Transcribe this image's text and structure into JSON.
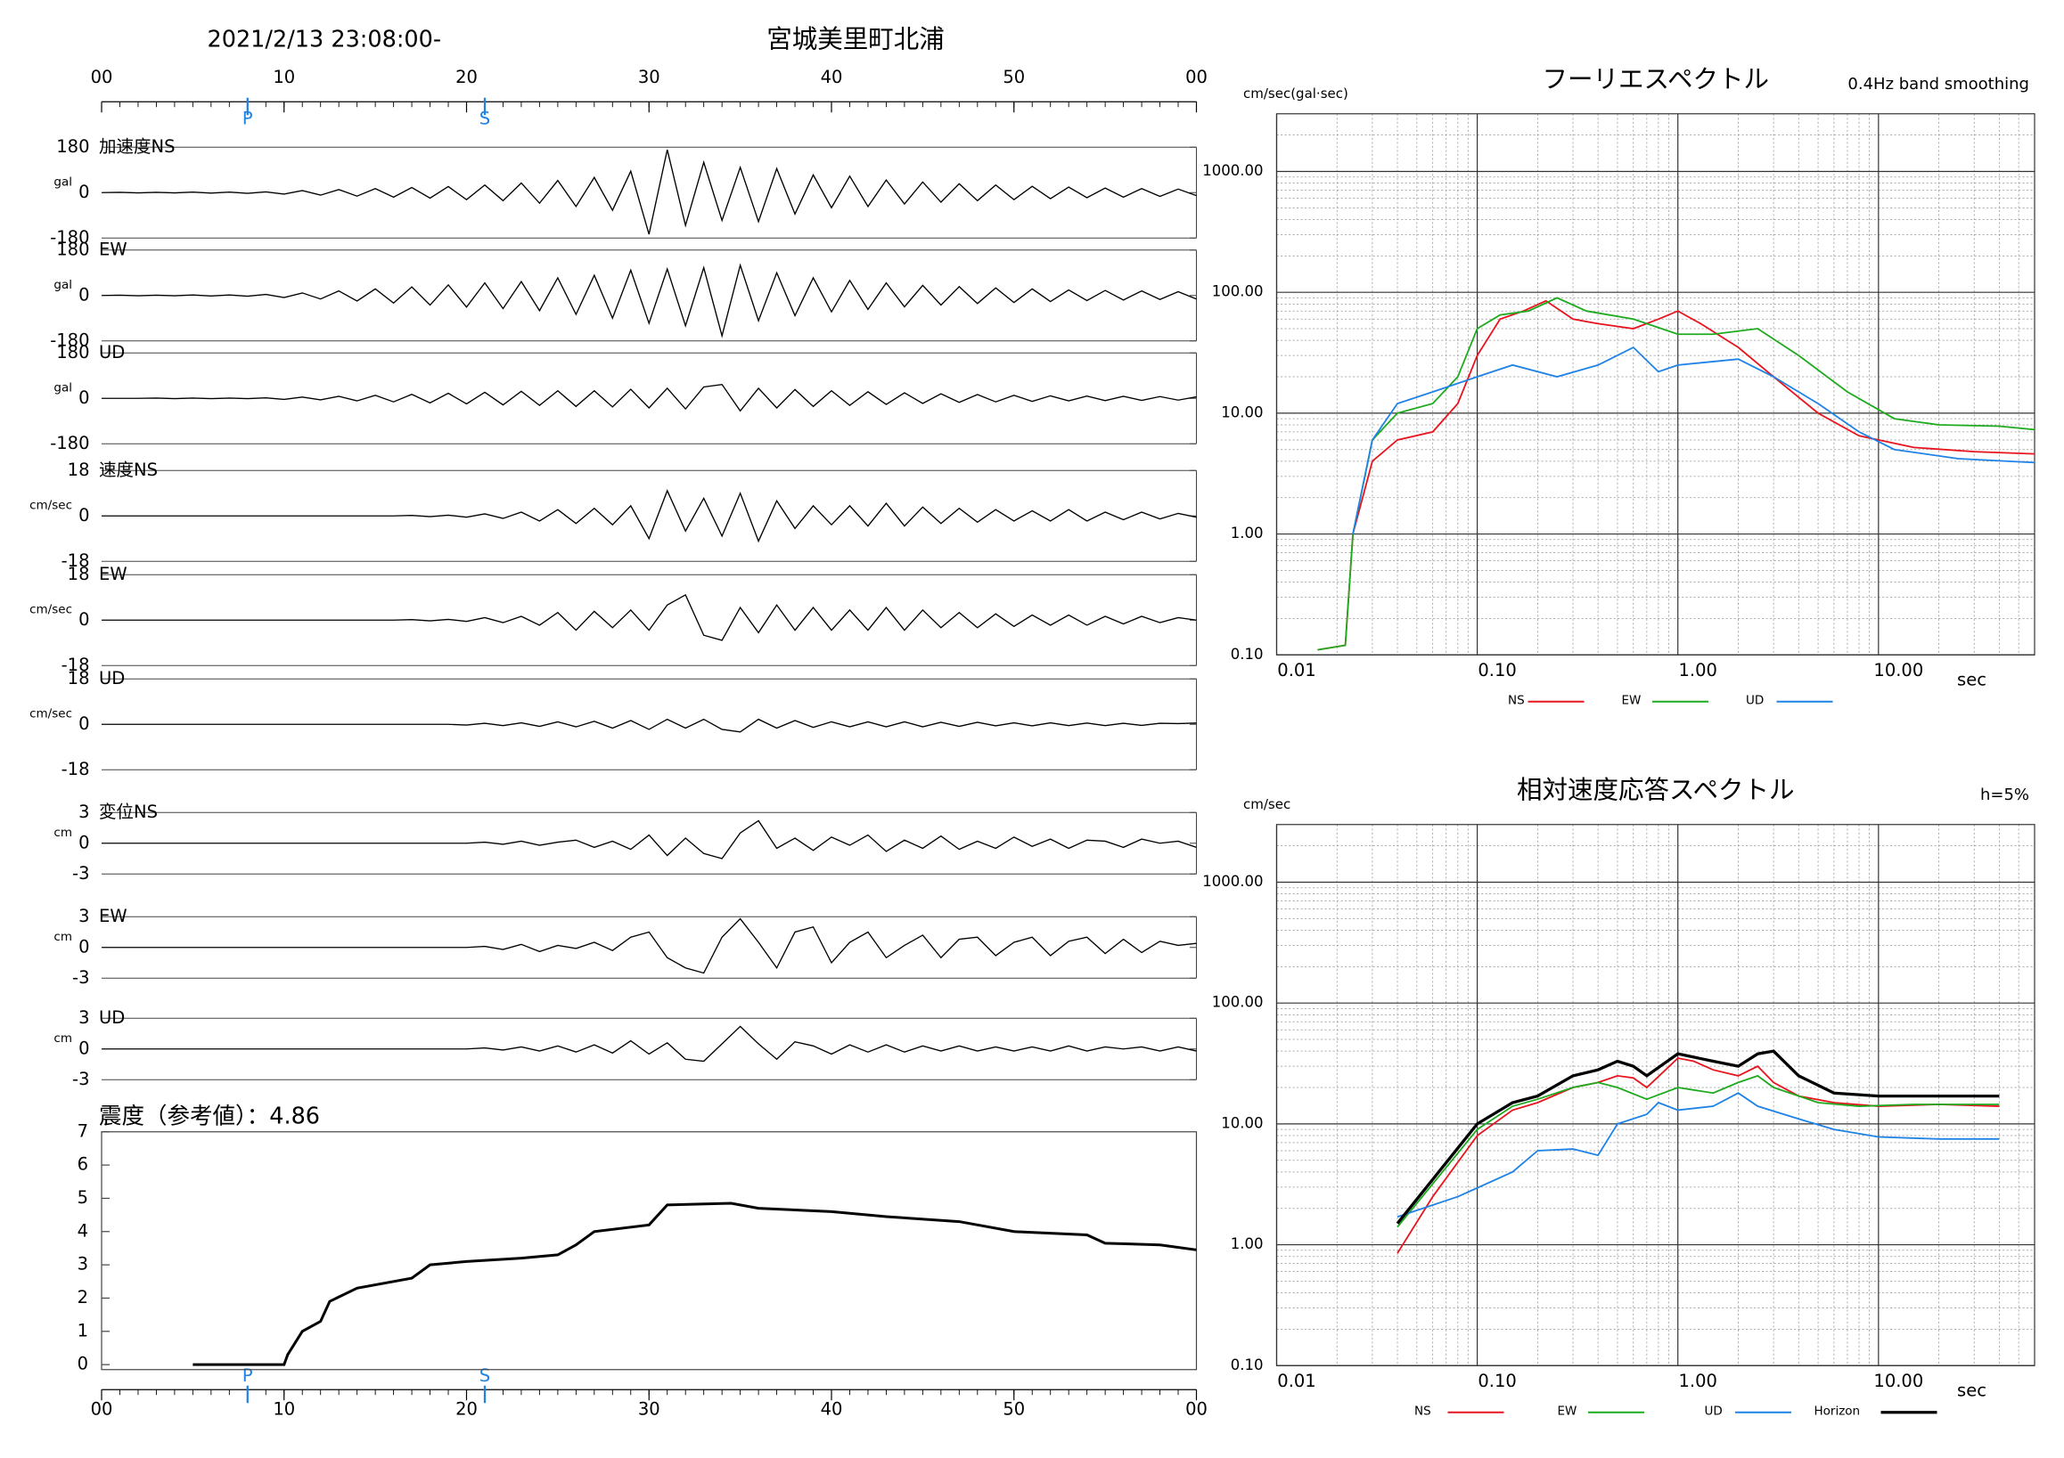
{
  "header": {
    "datetime": "2021/2/13 23:08:00-",
    "station": "宮城美里町北浦"
  },
  "time_axis": {
    "xlim": [
      0,
      60
    ],
    "xticks": [
      {
        "value": 0,
        "label": "00"
      },
      10,
      20,
      30,
      40,
      50,
      {
        "value": 60,
        "label": "00"
      }
    ],
    "phases": [
      {
        "label": "P",
        "value": 8
      },
      {
        "label": "S",
        "value": 21
      }
    ],
    "x": [
      0,
      1,
      2,
      3,
      4,
      5,
      6,
      7,
      8,
      9,
      10,
      11,
      12,
      13,
      14,
      15,
      16,
      17,
      18,
      19,
      20,
      21,
      22,
      23,
      24,
      25,
      26,
      27,
      28,
      29,
      30,
      31,
      32,
      33,
      34,
      35,
      36,
      37,
      38,
      39,
      40,
      41,
      42,
      43,
      44,
      45,
      46,
      47,
      48,
      49,
      50,
      51,
      52,
      53,
      54,
      55,
      56,
      57,
      58,
      59,
      60
    ]
  },
  "chart_data": [
    {
      "type": "line",
      "title": "加速度NS",
      "ylabel": "gal",
      "ylim": [
        -180,
        180
      ],
      "yticks": [
        -180,
        0,
        180
      ],
      "color": "#000000",
      "values": [
        0,
        1,
        -1,
        1,
        -1,
        2,
        -2,
        2,
        -3,
        3,
        -6,
        8,
        -10,
        12,
        -14,
        16,
        -18,
        20,
        -22,
        24,
        -28,
        30,
        -32,
        38,
        -42,
        48,
        -55,
        60,
        -70,
        85,
        -165,
        170,
        -130,
        120,
        -110,
        100,
        -115,
        95,
        -85,
        70,
        -60,
        65,
        -55,
        50,
        -45,
        42,
        -38,
        35,
        -32,
        30,
        -28,
        25,
        -24,
        22,
        -20,
        18,
        -18,
        16,
        -15,
        14,
        -12
      ]
    },
    {
      "type": "line",
      "title": "EW",
      "ylabel": "gal",
      "ylim": [
        -180,
        180
      ],
      "yticks": [
        -180,
        0,
        180
      ],
      "color": "#000000",
      "values": [
        0,
        1,
        -1,
        1,
        -1,
        2,
        -2,
        2,
        -3,
        4,
        -8,
        10,
        -14,
        18,
        -22,
        26,
        -30,
        34,
        -38,
        42,
        -46,
        50,
        -52,
        55,
        -60,
        70,
        -75,
        80,
        -90,
        100,
        -110,
        105,
        -120,
        110,
        -160,
        120,
        -100,
        90,
        -80,
        70,
        -65,
        60,
        -55,
        50,
        -45,
        40,
        -38,
        35,
        -32,
        30,
        -28,
        26,
        -24,
        22,
        -20,
        20,
        -18,
        18,
        -16,
        15,
        -14
      ]
    },
    {
      "type": "line",
      "title": "UD",
      "ylabel": "gal",
      "ylim": [
        -180,
        180
      ],
      "yticks": [
        -180,
        0,
        180
      ],
      "color": "#000000",
      "values": [
        0,
        0,
        0,
        1,
        -1,
        1,
        -1,
        1,
        -1,
        2,
        -4,
        5,
        -6,
        8,
        -10,
        12,
        -14,
        16,
        -18,
        20,
        -22,
        24,
        -26,
        28,
        -28,
        30,
        -32,
        30,
        -34,
        36,
        -38,
        40,
        -42,
        45,
        55,
        -50,
        40,
        -38,
        35,
        -32,
        30,
        -28,
        26,
        -24,
        22,
        -20,
        18,
        -16,
        15,
        -14,
        12,
        -12,
        10,
        -10,
        9,
        -9,
        8,
        -8,
        7,
        -7,
        6
      ]
    },
    {
      "type": "line",
      "title": "速度NS",
      "ylabel": "cm/sec",
      "ylim": [
        -18,
        18
      ],
      "yticks": [
        -18,
        0,
        18
      ],
      "color": "#000000",
      "values": [
        0,
        0,
        0,
        0,
        0,
        0,
        0,
        0,
        0,
        0,
        0,
        0,
        0,
        0,
        0,
        0,
        0,
        0.2,
        -0.3,
        0.3,
        -0.5,
        0.8,
        -1,
        1.5,
        -2,
        2.5,
        -3,
        3,
        -3.5,
        4,
        -9,
        10,
        -6,
        7,
        -8,
        9,
        -10,
        6,
        -5,
        4,
        -3.5,
        4,
        -4,
        5,
        -4,
        3.5,
        -3,
        3,
        -2.5,
        2.5,
        -2,
        2,
        -2,
        2.5,
        -2,
        1.5,
        -1.5,
        1.5,
        -1.2,
        1,
        -0.5
      ]
    },
    {
      "type": "line",
      "title": "EW",
      "ylabel": "cm/sec",
      "ylim": [
        -18,
        18
      ],
      "yticks": [
        -18,
        0,
        18
      ],
      "color": "#000000",
      "values": [
        0,
        0,
        0,
        0,
        0,
        0,
        0,
        0,
        0,
        0,
        0,
        0,
        0,
        0,
        0,
        0,
        0,
        0.2,
        -0.3,
        0.3,
        -0.5,
        1,
        -1,
        1.5,
        -2,
        3,
        -4,
        3.5,
        -3,
        4,
        -4,
        6,
        10,
        -6,
        -8,
        5,
        -5,
        6,
        -4,
        5,
        -4,
        4,
        -4,
        5,
        -4,
        4,
        -3,
        3,
        -3,
        2.5,
        -2.5,
        2,
        -2,
        2,
        -2,
        1.5,
        -1.5,
        1.5,
        -1,
        1,
        0
      ]
    },
    {
      "type": "line",
      "title": "UD",
      "ylabel": "cm/sec",
      "ylim": [
        -18,
        18
      ],
      "yticks": [
        -18,
        0,
        18
      ],
      "color": "#000000",
      "values": [
        0,
        0,
        0,
        0,
        0,
        0,
        0,
        0,
        0,
        0,
        0,
        0,
        0,
        0,
        0,
        0,
        0,
        0,
        0,
        0,
        -0.3,
        0.4,
        -0.5,
        0.6,
        -0.8,
        1,
        -1,
        1.2,
        -1.5,
        1.5,
        -2,
        2,
        -1.5,
        2,
        -2,
        -3,
        2,
        -1.5,
        1.5,
        -1.2,
        1,
        -1,
        1,
        -1,
        1,
        -1,
        0.8,
        -0.8,
        0.8,
        -0.6,
        0.6,
        -0.6,
        0.6,
        -0.5,
        0.5,
        -0.5,
        0.4,
        -0.4,
        0.4,
        0.3,
        0.5
      ]
    },
    {
      "type": "line",
      "title": "変位NS",
      "ylabel": "cm",
      "ylim": [
        -3,
        3
      ],
      "yticks": [
        -3,
        0,
        3
      ],
      "color": "#000000",
      "values": [
        0,
        0,
        0,
        0,
        0,
        0,
        0,
        0,
        0,
        0,
        0,
        0,
        0,
        0,
        0,
        0,
        0,
        0,
        0,
        0,
        0,
        0.1,
        -0.1,
        0.2,
        -0.2,
        0.1,
        0.3,
        -0.4,
        0.2,
        -0.6,
        0.8,
        -1.2,
        0.5,
        -1,
        -1.5,
        1,
        2.2,
        -0.5,
        0.5,
        -0.7,
        0.6,
        -0.2,
        0.8,
        -0.8,
        0.3,
        -0.5,
        0.7,
        -0.6,
        0.2,
        -0.5,
        0.6,
        -0.3,
        0.4,
        -0.5,
        0.3,
        0.2,
        -0.4,
        0.4,
        0,
        0.2,
        -0.4
      ]
    },
    {
      "type": "line",
      "title": "EW",
      "ylabel": "cm",
      "ylim": [
        -3,
        3
      ],
      "yticks": [
        -3,
        0,
        3
      ],
      "color": "#000000",
      "values": [
        0,
        0,
        0,
        0,
        0,
        0,
        0,
        0,
        0,
        0,
        0,
        0,
        0,
        0,
        0,
        0,
        0,
        0,
        0,
        0,
        0,
        0.1,
        -0.2,
        0.3,
        -0.4,
        0.2,
        -0.1,
        0.5,
        -0.3,
        1,
        1.5,
        -1,
        -2,
        -2.5,
        1,
        2.8,
        0.5,
        -2,
        1.5,
        2,
        -1.5,
        0.5,
        1.5,
        -1,
        0.2,
        1.2,
        -1,
        0.8,
        1,
        -0.8,
        0.5,
        1,
        -0.8,
        0.6,
        1,
        -0.6,
        0.8,
        -0.5,
        0.6,
        0.2,
        0.4
      ]
    },
    {
      "type": "line",
      "title": "UD",
      "ylabel": "cm",
      "ylim": [
        -3,
        3
      ],
      "yticks": [
        -3,
        0,
        3
      ],
      "color": "#000000",
      "values": [
        0,
        0,
        0,
        0,
        0,
        0,
        0,
        0,
        0,
        0,
        0,
        0,
        0,
        0,
        0,
        0,
        0,
        0,
        0,
        0,
        0,
        0.1,
        -0.1,
        0.2,
        -0.2,
        0.3,
        -0.3,
        0.4,
        -0.4,
        0.8,
        -0.5,
        0.6,
        -1,
        -1.2,
        0.5,
        2.2,
        0.5,
        -1,
        0.7,
        0.3,
        -0.5,
        0.4,
        -0.3,
        0.4,
        -0.3,
        0.3,
        -0.2,
        0.3,
        -0.2,
        0.2,
        -0.2,
        0.2,
        -0.2,
        0.3,
        -0.2,
        0.2,
        0,
        0.2,
        -0.2,
        0.2,
        -0.2
      ]
    },
    {
      "type": "line",
      "title": "震度（参考値）：4.86",
      "ylim": [
        -0.15,
        7
      ],
      "yticks": [
        0,
        1,
        2,
        3,
        4,
        5,
        6,
        7
      ],
      "color": "#000000",
      "x": [
        5,
        10,
        10.2,
        11,
        12,
        12.5,
        14,
        17,
        18,
        20,
        23,
        25,
        26,
        27,
        30,
        31,
        34.5,
        36,
        40,
        43,
        47,
        50,
        54,
        55,
        58,
        60
      ],
      "values": [
        0,
        0,
        0.3,
        1.0,
        1.3,
        1.9,
        2.3,
        2.6,
        3.0,
        3.1,
        3.2,
        3.3,
        3.6,
        4.0,
        4.2,
        4.8,
        4.85,
        4.7,
        4.6,
        4.45,
        4.3,
        4.0,
        3.9,
        3.65,
        3.6,
        3.45
      ]
    },
    {
      "type": "line",
      "title": "フーリエスペクトル",
      "subtitle": "0.4Hz band smoothing",
      "ylabel": "cm/sec(gal·sec)",
      "xlabel": "sec",
      "log_x": true,
      "log_y": true,
      "grid": true,
      "xlim": [
        0.01,
        60
      ],
      "ylim": [
        0.1,
        3000
      ],
      "xticks": [
        0.01,
        {
          "value": 0.1,
          "label": "0.10"
        },
        {
          "value": 1,
          "label": "1.00"
        },
        {
          "value": 10,
          "label": "10.00"
        }
      ],
      "yticks": [
        {
          "value": 0.1,
          "label": "0.10"
        },
        {
          "value": 1,
          "label": "1.00"
        },
        {
          "value": 10,
          "label": "10.00"
        },
        {
          "value": 100,
          "label": "100.00"
        },
        {
          "value": 1000,
          "label": "1000.00"
        }
      ],
      "series": [
        {
          "name": "NS",
          "color": "#e8141e",
          "x": [
            0.016,
            0.022,
            0.024,
            0.03,
            0.04,
            0.06,
            0.08,
            0.1,
            0.13,
            0.17,
            0.22,
            0.3,
            0.4,
            0.6,
            0.8,
            1.0,
            1.3,
            2,
            3,
            5,
            8,
            15,
            30,
            60
          ],
          "values": [
            0.11,
            0.12,
            1.0,
            4,
            6,
            7,
            12,
            30,
            60,
            70,
            85,
            60,
            55,
            50,
            60,
            70,
            55,
            35,
            20,
            10,
            6.5,
            5.2,
            4.8,
            4.6
          ]
        },
        {
          "name": "EW",
          "color": "#1eaa1e",
          "x": [
            0.016,
            0.022,
            0.024,
            0.03,
            0.04,
            0.06,
            0.08,
            0.1,
            0.13,
            0.18,
            0.25,
            0.35,
            0.6,
            1,
            1.5,
            2.5,
            4,
            7,
            12,
            20,
            40,
            60
          ],
          "values": [
            0.11,
            0.12,
            1.0,
            6,
            10,
            12,
            20,
            50,
            65,
            70,
            90,
            70,
            60,
            45,
            45,
            50,
            30,
            15,
            9,
            8,
            7.8,
            7.3
          ]
        },
        {
          "name": "UD",
          "color": "#1e82e6",
          "x": [
            0.024,
            0.03,
            0.04,
            0.06,
            0.1,
            0.15,
            0.25,
            0.4,
            0.6,
            0.8,
            1,
            2,
            3,
            5,
            8,
            12,
            25,
            60
          ],
          "values": [
            1,
            6,
            12,
            15,
            20,
            25,
            20,
            25,
            35,
            22,
            25,
            28,
            20,
            12,
            7,
            5,
            4.2,
            3.9
          ]
        }
      ]
    },
    {
      "type": "line",
      "title": "相対速度応答スペクトル",
      "subtitle": "h=5%",
      "ylabel": "cm/sec",
      "xlabel": "sec",
      "log_x": true,
      "log_y": true,
      "grid": true,
      "xlim": [
        0.01,
        60
      ],
      "ylim": [
        0.1,
        3000
      ],
      "xticks": [
        0.01,
        {
          "value": 0.1,
          "label": "0.10"
        },
        {
          "value": 1,
          "label": "1.00"
        },
        {
          "value": 10,
          "label": "10.00"
        }
      ],
      "yticks": [
        {
          "value": 0.1,
          "label": "0.10"
        },
        {
          "value": 1,
          "label": "1.00"
        },
        {
          "value": 10,
          "label": "10.00"
        },
        {
          "value": 100,
          "label": "100.00"
        },
        {
          "value": 1000,
          "label": "1000.00"
        }
      ],
      "series": [
        {
          "name": "NS",
          "color": "#e8141e",
          "x": [
            0.04,
            0.06,
            0.1,
            0.15,
            0.2,
            0.3,
            0.4,
            0.5,
            0.6,
            0.7,
            1,
            1.2,
            1.5,
            2,
            2.5,
            3,
            4,
            6,
            10,
            20,
            40
          ],
          "values": [
            0.85,
            2.5,
            8,
            13,
            15,
            20,
            22,
            25,
            24,
            20,
            35,
            33,
            28,
            25,
            30,
            22,
            17,
            15,
            14,
            14.5,
            14
          ]
        },
        {
          "name": "EW",
          "color": "#1eaa1e",
          "x": [
            0.04,
            0.1,
            0.15,
            0.2,
            0.3,
            0.4,
            0.5,
            0.7,
            1,
            1.5,
            2,
            2.5,
            3,
            5,
            8,
            15,
            40
          ],
          "values": [
            1.4,
            9,
            14,
            16,
            20,
            22,
            20,
            16,
            20,
            18,
            22,
            25,
            20,
            15,
            14,
            14.5,
            14.5
          ]
        },
        {
          "name": "UD",
          "color": "#1e82e6",
          "x": [
            0.04,
            0.08,
            0.15,
            0.2,
            0.3,
            0.4,
            0.5,
            0.7,
            0.8,
            1,
            1.5,
            2,
            2.5,
            4,
            6,
            10,
            20,
            40
          ],
          "values": [
            1.7,
            2.5,
            4,
            6,
            6.2,
            5.5,
            10,
            12,
            15,
            13,
            14,
            18,
            14,
            11,
            9,
            7.8,
            7.5,
            7.5
          ]
        },
        {
          "name": "Horizon",
          "color": "#000000",
          "x": [
            0.04,
            0.1,
            0.15,
            0.2,
            0.3,
            0.4,
            0.5,
            0.6,
            0.7,
            1,
            1.5,
            2,
            2.5,
            3,
            4,
            6,
            10,
            20,
            40
          ],
          "values": [
            1.5,
            10,
            15,
            17,
            25,
            28,
            33,
            30,
            25,
            38,
            33,
            30,
            38,
            40,
            25,
            18,
            17,
            17,
            17
          ]
        }
      ]
    }
  ]
}
